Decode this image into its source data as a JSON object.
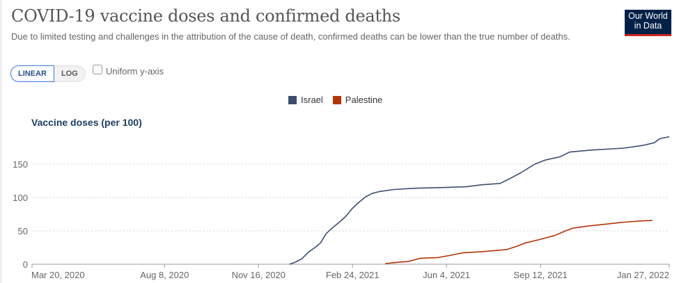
{
  "header": {
    "title": "COVID-19 vaccine doses and confirmed deaths",
    "subtitle": "Due to limited testing and challenges in the attribution of the cause of death, confirmed deaths can be lower than the true number of deaths.",
    "logo_line1": "Our World",
    "logo_line2": "in Data"
  },
  "controls": {
    "linear_label": "LINEAR",
    "log_label": "LOG",
    "selected_scale": "LINEAR",
    "uniform_label": "Uniform y-axis",
    "uniform_checked": false
  },
  "colors": {
    "israel": "#3c4e6e",
    "palestine": "#b13507",
    "brand": "#002147",
    "brand_accent": "#ce261e"
  },
  "chart_data": {
    "type": "line",
    "title": "COVID-19 vaccine doses and confirmed deaths",
    "ylabel": "Vaccine doses (per 100)",
    "xlabel": "",
    "ylim": [
      0,
      195
    ],
    "yticks": [
      0,
      50,
      100,
      150
    ],
    "grid": true,
    "legend_position": "top-center",
    "x_start": "2020-03-20",
    "x_end": "2022-01-27",
    "x_range_days": [
      0,
      678
    ],
    "xticks": [
      {
        "day": 0,
        "label": "Mar 20, 2020"
      },
      {
        "day": 141,
        "label": "Aug 8, 2020"
      },
      {
        "day": 241,
        "label": "Nov 16, 2020"
      },
      {
        "day": 341,
        "label": "Feb 24, 2021"
      },
      {
        "day": 441,
        "label": "Jun 4, 2021"
      },
      {
        "day": 541,
        "label": "Sep 12, 2021"
      },
      {
        "day": 678,
        "label": "Jan 27, 2022"
      }
    ],
    "x_unit": "days since Mar 20, 2020",
    "series": [
      {
        "name": "Israel",
        "color": "#3c4e6e",
        "points": [
          [
            274,
            0
          ],
          [
            280,
            3
          ],
          [
            287,
            8
          ],
          [
            294,
            18
          ],
          [
            301,
            25
          ],
          [
            307,
            32
          ],
          [
            313,
            46
          ],
          [
            320,
            55
          ],
          [
            327,
            63
          ],
          [
            334,
            72
          ],
          [
            341,
            84
          ],
          [
            348,
            93
          ],
          [
            355,
            101
          ],
          [
            362,
            106
          ],
          [
            370,
            109
          ],
          [
            385,
            112
          ],
          [
            410,
            114
          ],
          [
            440,
            115
          ],
          [
            462,
            116
          ],
          [
            478,
            119
          ],
          [
            498,
            121
          ],
          [
            508,
            128
          ],
          [
            520,
            137
          ],
          [
            535,
            150
          ],
          [
            546,
            156
          ],
          [
            562,
            161
          ],
          [
            572,
            168
          ],
          [
            595,
            171
          ],
          [
            630,
            174
          ],
          [
            650,
            178
          ],
          [
            662,
            182
          ],
          [
            668,
            188
          ],
          [
            678,
            191
          ]
        ]
      },
      {
        "name": "Palestine",
        "color": "#b13507",
        "points": [
          [
            376,
            1
          ],
          [
            390,
            3
          ],
          [
            400,
            4
          ],
          [
            413,
            9
          ],
          [
            432,
            10
          ],
          [
            444,
            13
          ],
          [
            458,
            17
          ],
          [
            480,
            19
          ],
          [
            505,
            22
          ],
          [
            516,
            27
          ],
          [
            525,
            32
          ],
          [
            540,
            37
          ],
          [
            556,
            43
          ],
          [
            566,
            49
          ],
          [
            575,
            54
          ],
          [
            590,
            57
          ],
          [
            610,
            60
          ],
          [
            630,
            63
          ],
          [
            650,
            65
          ],
          [
            660,
            65.5
          ]
        ]
      }
    ]
  }
}
